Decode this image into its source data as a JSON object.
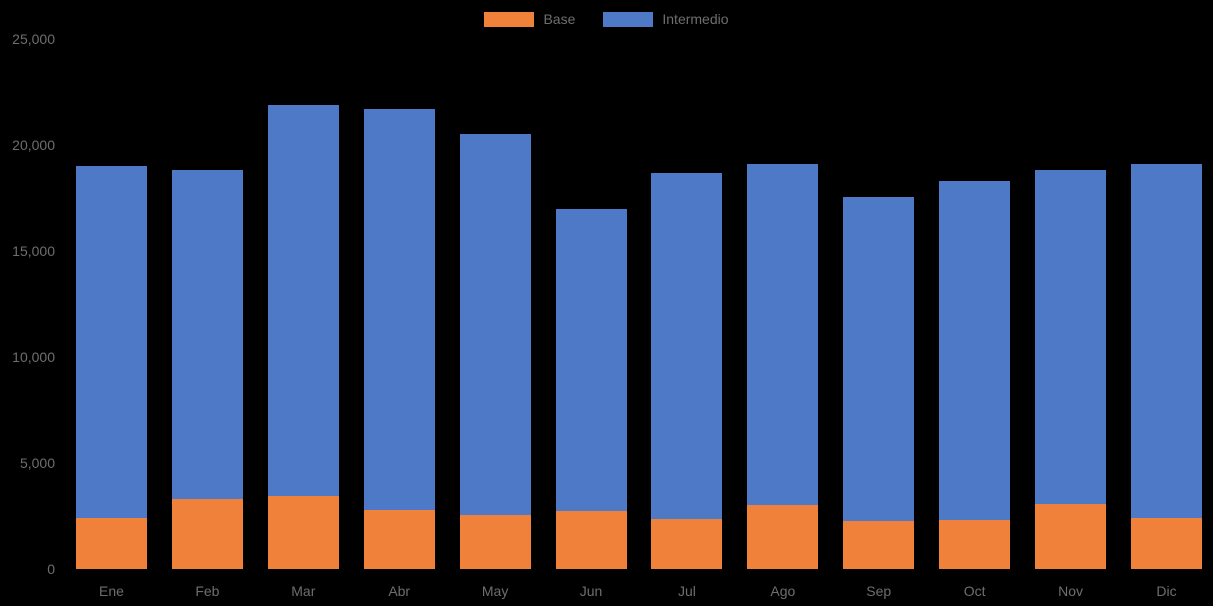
{
  "chart_data": {
    "type": "bar",
    "stacked": true,
    "title": "",
    "xlabel": "",
    "ylabel": "",
    "categories": [
      "Ene",
      "Feb",
      "Mar",
      "Abr",
      "May",
      "Jun",
      "Jul",
      "Ago",
      "Sep",
      "Oct",
      "Nov",
      "Dic"
    ],
    "series": [
      {
        "name": "Base",
        "color": "#F0813A",
        "values": [
          2400,
          3300,
          3450,
          2800,
          2550,
          2750,
          2350,
          3000,
          2250,
          2300,
          3050,
          2400
        ]
      },
      {
        "name": "Intermedio",
        "color": "#4E79C6",
        "values": [
          16600,
          15500,
          18450,
          18900,
          17950,
          14250,
          16350,
          16100,
          15300,
          16000,
          15750,
          16700
        ]
      }
    ],
    "totals": [
      19000,
      18800,
      21900,
      21700,
      20500,
      17000,
      18700,
      19100,
      17550,
      18300,
      18800,
      19100
    ],
    "ylim": [
      0,
      25000
    ],
    "yticks": [
      {
        "value": 0,
        "label": "0"
      },
      {
        "value": 5000,
        "label": "5,000"
      },
      {
        "value": 10000,
        "label": "10,000"
      },
      {
        "value": 15000,
        "label": "15,000"
      },
      {
        "value": 20000,
        "label": "20,000"
      },
      {
        "value": 25000,
        "label": "25,000"
      }
    ],
    "grid": false,
    "legend_position": "top"
  },
  "legend": {
    "items": [
      {
        "label": "Base",
        "color": "#F0813A"
      },
      {
        "label": "Intermedio",
        "color": "#4E79C6"
      }
    ]
  },
  "colors": {
    "background": "#000000",
    "axis_text": "#6E6E6E",
    "base_series": "#F0813A",
    "intermedio_series": "#4E79C6"
  }
}
